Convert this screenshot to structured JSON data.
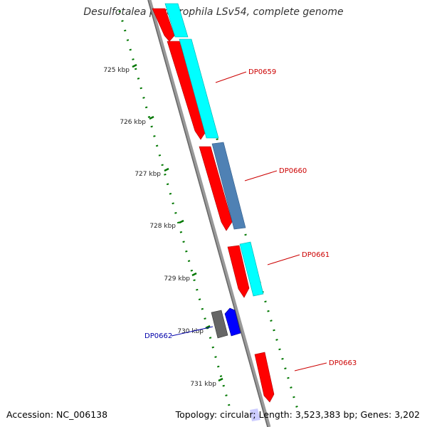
{
  "title": "Desulfotalea psychrophila LSv54, complete genome",
  "footer": {
    "accession": "Accession: NC_006138",
    "summary": "Topology: circular; Length: 3,523,383 bp; Genes: 3,202"
  },
  "scale": {
    "tick_labels": [
      "725 kbp",
      "726 kbp",
      "727 kbp",
      "728 kbp",
      "729 kbp",
      "730 kbp",
      "731 kbp"
    ]
  },
  "genes": [
    {
      "label": "DP0659",
      "color": "#cc0000"
    },
    {
      "label": "DP0660",
      "color": "#cc0000"
    },
    {
      "label": "DP0661",
      "color": "#cc0000"
    },
    {
      "label": "DP0662",
      "color": "#0000aa"
    },
    {
      "label": "DP0663",
      "color": "#cc0000"
    }
  ],
  "colors": {
    "cds": "#ff0000",
    "orthologs_cyan": "#00ffff",
    "orthologs_steel": "#4f81b4",
    "rna_grey": "#666666",
    "blue": "#0000ff",
    "backbone": "#888888",
    "ticks": "#007700"
  }
}
